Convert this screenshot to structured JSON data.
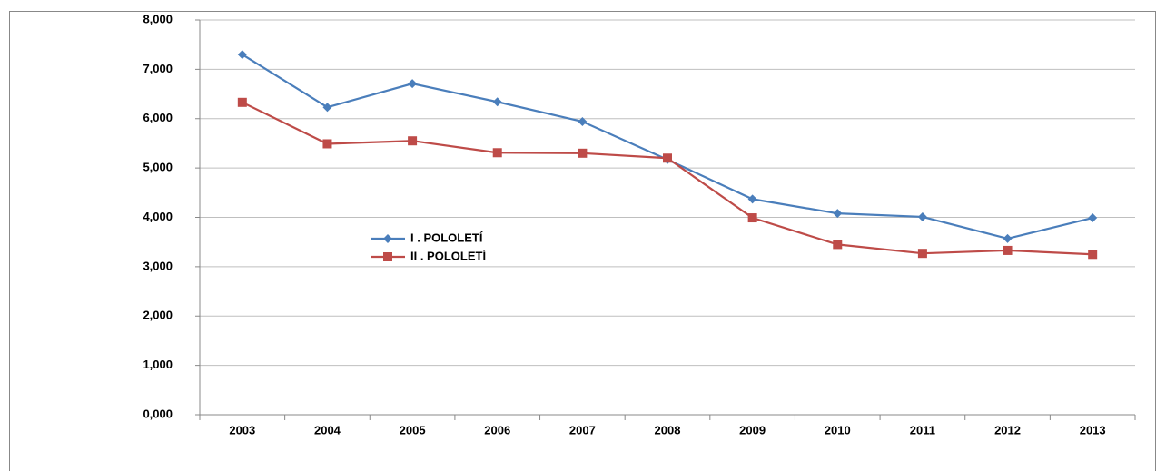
{
  "chart_data": {
    "type": "line",
    "categories": [
      "2003",
      "2004",
      "2005",
      "2006",
      "2007",
      "2008",
      "2009",
      "2010",
      "2011",
      "2012",
      "2013"
    ],
    "series": [
      {
        "name": "I . POLOLETÍ",
        "color": "#4a7ebb",
        "marker": "diamond",
        "values": [
          7300,
          6230,
          6710,
          6340,
          5940,
          5170,
          4370,
          4080,
          4010,
          3570,
          3990
        ]
      },
      {
        "name": "II . POLOLETÍ",
        "color": "#be4b48",
        "marker": "square",
        "values": [
          6330,
          5490,
          5550,
          5310,
          5300,
          5200,
          3990,
          3450,
          3270,
          3330,
          3250
        ]
      }
    ],
    "ylim": [
      0,
      8000
    ],
    "yticks": [
      {
        "value": 0,
        "label": "0,000"
      },
      {
        "value": 1000,
        "label": "1,000"
      },
      {
        "value": 2000,
        "label": "2,000"
      },
      {
        "value": 3000,
        "label": "3,000"
      },
      {
        "value": 4000,
        "label": "4,000"
      },
      {
        "value": 5000,
        "label": "5,000"
      },
      {
        "value": 6000,
        "label": "6,000"
      },
      {
        "value": 7000,
        "label": "7,000"
      },
      {
        "value": 8000,
        "label": "8,000"
      }
    ],
    "grid": true
  }
}
